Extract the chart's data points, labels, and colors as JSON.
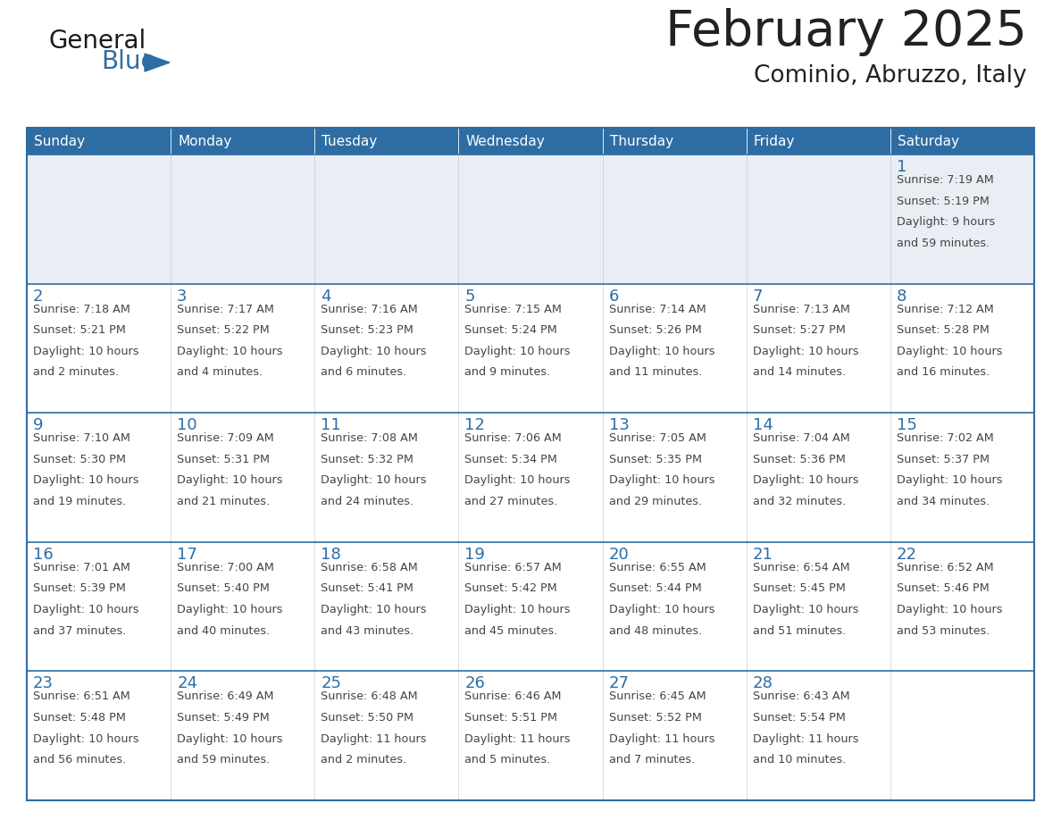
{
  "title": "February 2025",
  "subtitle": "Cominio, Abruzzo, Italy",
  "days_of_week": [
    "Sunday",
    "Monday",
    "Tuesday",
    "Wednesday",
    "Thursday",
    "Friday",
    "Saturday"
  ],
  "header_bg": "#2E6DA4",
  "header_text": "#FFFFFF",
  "row1_bg": "#E8EEF4",
  "row_bg": "#FFFFFF",
  "border_color": "#2E6DA4",
  "day_number_color": "#2E6DA4",
  "text_color": "#444444",
  "title_color": "#222222",
  "logo_general_color": "#1a1a1a",
  "logo_blue_color": "#2E6DA4",
  "logo_triangle_color": "#2E6DA4",
  "calendar_data": [
    [
      null,
      null,
      null,
      null,
      null,
      null,
      {
        "day": 1,
        "sunrise": "7:19 AM",
        "sunset": "5:19 PM",
        "daylight": "9 hours\nand 59 minutes."
      }
    ],
    [
      {
        "day": 2,
        "sunrise": "7:18 AM",
        "sunset": "5:21 PM",
        "daylight": "10 hours\nand 2 minutes."
      },
      {
        "day": 3,
        "sunrise": "7:17 AM",
        "sunset": "5:22 PM",
        "daylight": "10 hours\nand 4 minutes."
      },
      {
        "day": 4,
        "sunrise": "7:16 AM",
        "sunset": "5:23 PM",
        "daylight": "10 hours\nand 6 minutes."
      },
      {
        "day": 5,
        "sunrise": "7:15 AM",
        "sunset": "5:24 PM",
        "daylight": "10 hours\nand 9 minutes."
      },
      {
        "day": 6,
        "sunrise": "7:14 AM",
        "sunset": "5:26 PM",
        "daylight": "10 hours\nand 11 minutes."
      },
      {
        "day": 7,
        "sunrise": "7:13 AM",
        "sunset": "5:27 PM",
        "daylight": "10 hours\nand 14 minutes."
      },
      {
        "day": 8,
        "sunrise": "7:12 AM",
        "sunset": "5:28 PM",
        "daylight": "10 hours\nand 16 minutes."
      }
    ],
    [
      {
        "day": 9,
        "sunrise": "7:10 AM",
        "sunset": "5:30 PM",
        "daylight": "10 hours\nand 19 minutes."
      },
      {
        "day": 10,
        "sunrise": "7:09 AM",
        "sunset": "5:31 PM",
        "daylight": "10 hours\nand 21 minutes."
      },
      {
        "day": 11,
        "sunrise": "7:08 AM",
        "sunset": "5:32 PM",
        "daylight": "10 hours\nand 24 minutes."
      },
      {
        "day": 12,
        "sunrise": "7:06 AM",
        "sunset": "5:34 PM",
        "daylight": "10 hours\nand 27 minutes."
      },
      {
        "day": 13,
        "sunrise": "7:05 AM",
        "sunset": "5:35 PM",
        "daylight": "10 hours\nand 29 minutes."
      },
      {
        "day": 14,
        "sunrise": "7:04 AM",
        "sunset": "5:36 PM",
        "daylight": "10 hours\nand 32 minutes."
      },
      {
        "day": 15,
        "sunrise": "7:02 AM",
        "sunset": "5:37 PM",
        "daylight": "10 hours\nand 34 minutes."
      }
    ],
    [
      {
        "day": 16,
        "sunrise": "7:01 AM",
        "sunset": "5:39 PM",
        "daylight": "10 hours\nand 37 minutes."
      },
      {
        "day": 17,
        "sunrise": "7:00 AM",
        "sunset": "5:40 PM",
        "daylight": "10 hours\nand 40 minutes."
      },
      {
        "day": 18,
        "sunrise": "6:58 AM",
        "sunset": "5:41 PM",
        "daylight": "10 hours\nand 43 minutes."
      },
      {
        "day": 19,
        "sunrise": "6:57 AM",
        "sunset": "5:42 PM",
        "daylight": "10 hours\nand 45 minutes."
      },
      {
        "day": 20,
        "sunrise": "6:55 AM",
        "sunset": "5:44 PM",
        "daylight": "10 hours\nand 48 minutes."
      },
      {
        "day": 21,
        "sunrise": "6:54 AM",
        "sunset": "5:45 PM",
        "daylight": "10 hours\nand 51 minutes."
      },
      {
        "day": 22,
        "sunrise": "6:52 AM",
        "sunset": "5:46 PM",
        "daylight": "10 hours\nand 53 minutes."
      }
    ],
    [
      {
        "day": 23,
        "sunrise": "6:51 AM",
        "sunset": "5:48 PM",
        "daylight": "10 hours\nand 56 minutes."
      },
      {
        "day": 24,
        "sunrise": "6:49 AM",
        "sunset": "5:49 PM",
        "daylight": "10 hours\nand 59 minutes."
      },
      {
        "day": 25,
        "sunrise": "6:48 AM",
        "sunset": "5:50 PM",
        "daylight": "11 hours\nand 2 minutes."
      },
      {
        "day": 26,
        "sunrise": "6:46 AM",
        "sunset": "5:51 PM",
        "daylight": "11 hours\nand 5 minutes."
      },
      {
        "day": 27,
        "sunrise": "6:45 AM",
        "sunset": "5:52 PM",
        "daylight": "11 hours\nand 7 minutes."
      },
      {
        "day": 28,
        "sunrise": "6:43 AM",
        "sunset": "5:54 PM",
        "daylight": "11 hours\nand 10 minutes."
      },
      null
    ]
  ]
}
